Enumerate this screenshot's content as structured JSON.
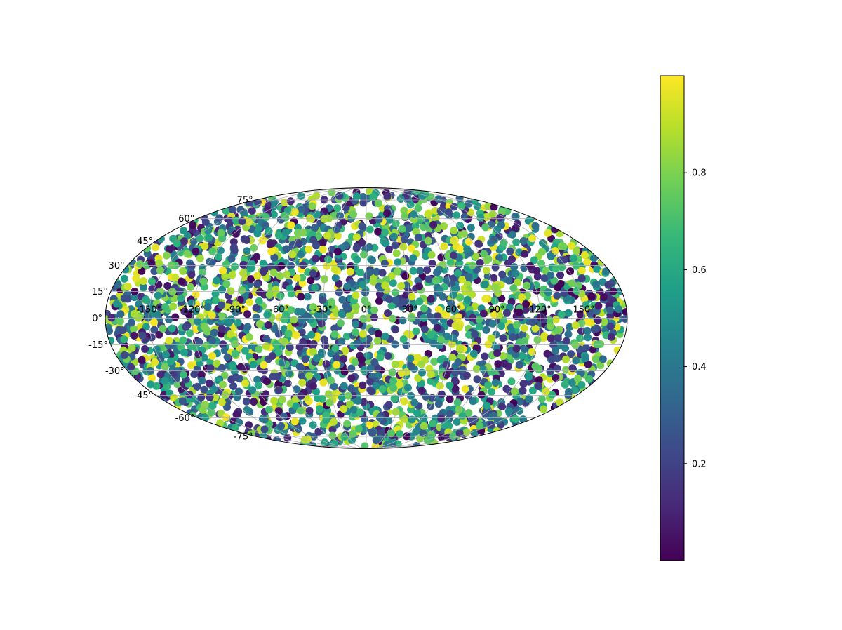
{
  "chart_data": {
    "type": "scatter",
    "projection": "mollweide",
    "title": "",
    "xlabel": "",
    "ylabel": "",
    "xlim": [
      -180,
      180
    ],
    "ylim": [
      -90,
      90
    ],
    "grid": true,
    "x_ticks": [
      "-150°",
      "-120°",
      "-90°",
      "-60°",
      "-30°",
      "0°",
      "30°",
      "60°",
      "90°",
      "120°",
      "150°"
    ],
    "y_ticks": [
      "75°",
      "60°",
      "45°",
      "30°",
      "15°",
      "0°",
      "-15°",
      "-30°",
      "-45°",
      "-60°",
      "-75°"
    ],
    "x_tick_values": [
      -150,
      -120,
      -90,
      -60,
      -30,
      0,
      30,
      60,
      90,
      120,
      150
    ],
    "y_tick_values": [
      75,
      60,
      45,
      30,
      15,
      0,
      -15,
      -30,
      -45,
      -60,
      -75
    ],
    "point_count": 3000,
    "point_distribution": "approximately uniform over the sphere",
    "color_value_range": [
      0.0,
      1.0
    ],
    "colormap": "viridis",
    "colormap_stops": [
      "#440154",
      "#482878",
      "#3e4989",
      "#31688e",
      "#26828e",
      "#1f9e89",
      "#35b779",
      "#6ece58",
      "#b5de2b",
      "#fde725"
    ],
    "colorbar": {
      "range": [
        0.0,
        1.0
      ],
      "ticks": [
        "0.2",
        "0.4",
        "0.6",
        "0.8"
      ],
      "tick_values": [
        0.2,
        0.4,
        0.6,
        0.8
      ]
    }
  }
}
